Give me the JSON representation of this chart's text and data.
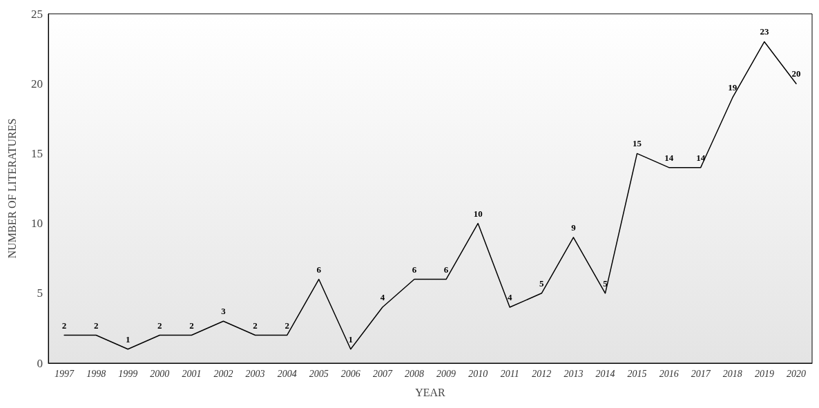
{
  "chart_data": {
    "type": "line",
    "xlabel": "YEAR",
    "ylabel": "NUMBER OF LITERATURES",
    "categories": [
      "1997",
      "1998",
      "1999",
      "2000",
      "2001",
      "2002",
      "2003",
      "2004",
      "2005",
      "2006",
      "2007",
      "2008",
      "2009",
      "2010",
      "2011",
      "2012",
      "2013",
      "2014",
      "2015",
      "2016",
      "2017",
      "2018",
      "2019",
      "2020"
    ],
    "series": [
      {
        "color": "#000000",
        "values": [
          2,
          2,
          1,
          2,
          2,
          3,
          2,
          2,
          6,
          1,
          4,
          6,
          6,
          10,
          4,
          5,
          9,
          5,
          15,
          14,
          14,
          19,
          23,
          20
        ]
      }
    ],
    "ylim": [
      0,
      25
    ],
    "yticks": [
      0,
      5,
      10,
      15,
      20,
      25
    ],
    "grid": false,
    "marker": "none",
    "line_style": "solid",
    "data_labels": true
  }
}
